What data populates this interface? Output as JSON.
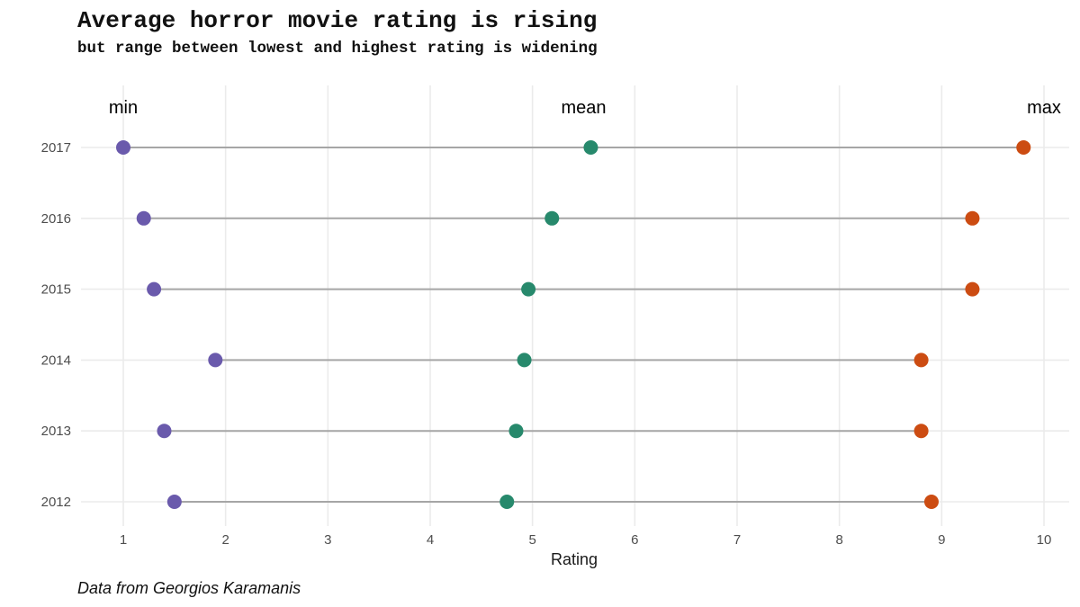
{
  "chart_data": {
    "type": "dumbbell",
    "title": "Average horror movie rating is rising",
    "subtitle": "but range between lowest and highest rating is widening",
    "xlabel": "Rating",
    "ylabel": "",
    "caption": "Data from Georgios Karamanis",
    "xlim": [
      0.7,
      10.25
    ],
    "x_ticks": [
      1,
      2,
      3,
      4,
      5,
      6,
      7,
      8,
      9,
      10
    ],
    "grid": true,
    "column_labels": [
      {
        "text": "min",
        "x": 1
      },
      {
        "text": "mean",
        "x": 5.5
      },
      {
        "text": "max",
        "x": 10
      }
    ],
    "categories": [
      "2012",
      "2013",
      "2014",
      "2015",
      "2016",
      "2017"
    ],
    "series": [
      {
        "name": "min",
        "color": "#6a5aac",
        "values": [
          1.5,
          1.4,
          1.9,
          1.3,
          1.2,
          1.0
        ]
      },
      {
        "name": "mean",
        "color": "#27896c",
        "values": [
          4.75,
          4.84,
          4.92,
          4.96,
          5.19,
          5.57
        ]
      },
      {
        "name": "max",
        "color": "#cc4c12",
        "values": [
          8.9,
          8.8,
          8.8,
          9.3,
          9.3,
          9.8
        ]
      }
    ],
    "segment_color": "#a6a6a6"
  }
}
